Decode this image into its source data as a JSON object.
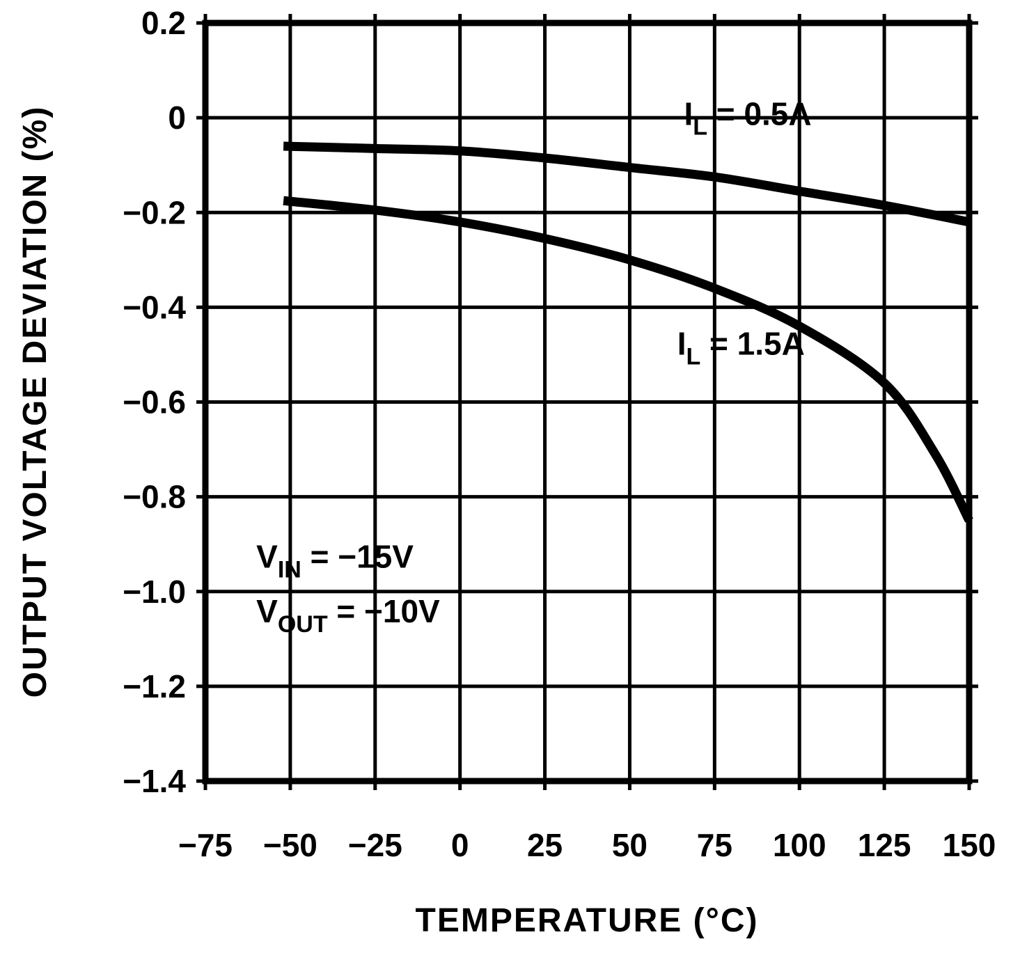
{
  "chart_data": {
    "type": "line",
    "title": "",
    "xlabel": "TEMPERATURE (°C)",
    "ylabel": "OUTPUT VOLTAGE DEVIATION (%)",
    "xlim": [
      -75,
      150
    ],
    "ylim": [
      -1.4,
      0.2
    ],
    "grid": true,
    "legend_position": "inline-labels",
    "colors": {
      "line": "#000000",
      "grid": "#000000",
      "frame": "#000000"
    },
    "xticks": [
      -75,
      -50,
      -25,
      0,
      25,
      50,
      75,
      100,
      125,
      150
    ],
    "xtick_labels": [
      "−75",
      "−50",
      "−25",
      "0",
      "25",
      "50",
      "75",
      "100",
      "125",
      "150"
    ],
    "yticks": [
      0.2,
      0,
      -0.2,
      -0.4,
      -0.6,
      -0.8,
      -1.0,
      -1.2,
      -1.4
    ],
    "ytick_labels": [
      "0.2",
      "0",
      "−0.2",
      "−0.4",
      "−0.6",
      "−0.8",
      "−1.0",
      "−1.2",
      "−1.4"
    ],
    "series": [
      {
        "name": "IL = 0.5A",
        "x": [
          -52,
          -25,
          0,
          25,
          50,
          75,
          100,
          125,
          150
        ],
        "y": [
          -0.06,
          -0.065,
          -0.07,
          -0.085,
          -0.105,
          -0.125,
          -0.155,
          -0.185,
          -0.22
        ]
      },
      {
        "name": "IL = 1.5A",
        "x": [
          -52,
          -25,
          0,
          25,
          50,
          75,
          100,
          125,
          140,
          150
        ],
        "y": [
          -0.175,
          -0.195,
          -0.22,
          -0.255,
          -0.3,
          -0.36,
          -0.44,
          -0.56,
          -0.71,
          -0.85
        ]
      }
    ],
    "series_labels": [
      {
        "x": 66,
        "y": -0.015,
        "segments": [
          {
            "t": "I"
          },
          {
            "t": "L",
            "sub": true
          },
          {
            "t": " = 0.5A"
          }
        ]
      },
      {
        "x": 64,
        "y": -0.5,
        "segments": [
          {
            "t": "I"
          },
          {
            "t": "L",
            "sub": true
          },
          {
            "t": " = 1.5A"
          }
        ]
      }
    ],
    "annotations": [
      {
        "x": -60,
        "y": -0.95,
        "segments": [
          {
            "t": "V"
          },
          {
            "t": "IN",
            "sub": true
          },
          {
            "t": " = −15V"
          }
        ]
      },
      {
        "x": -60,
        "y": -1.065,
        "segments": [
          {
            "t": "V"
          },
          {
            "t": "OUT",
            "sub": true
          },
          {
            "t": " = −10V"
          }
        ]
      }
    ]
  }
}
